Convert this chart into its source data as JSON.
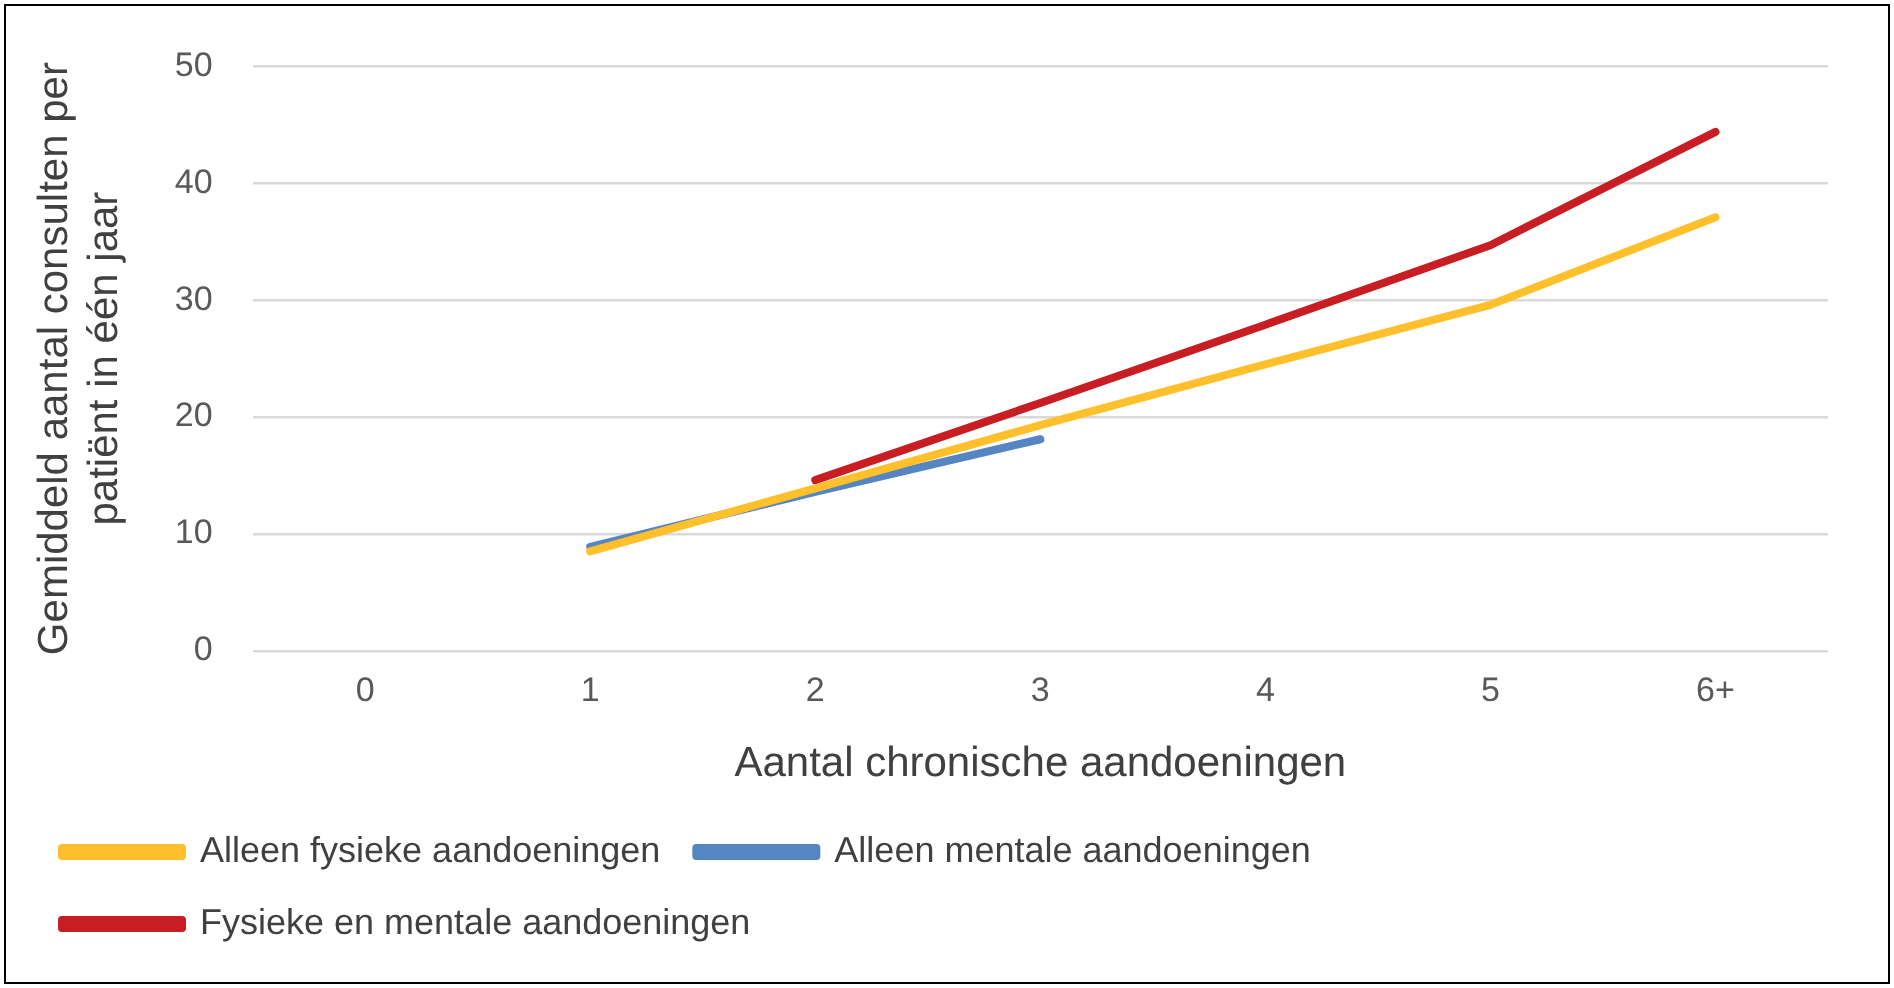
{
  "chart_data": {
    "type": "line",
    "xlabel": "Aantal chronische aandoeningen",
    "ylabel": "Gemiddeld aantal consulten per patiënt in één jaar",
    "categories": [
      "0",
      "1",
      "2",
      "3",
      "4",
      "5",
      "6+"
    ],
    "series": [
      {
        "name": "Alleen fysieke aandoeningen",
        "color": "#ffc02b",
        "values": [
          null,
          8.5,
          13.9,
          19.3,
          24.5,
          29.6,
          37.1
        ]
      },
      {
        "name": "Alleen mentale aandoeningen",
        "color": "#5585c2",
        "values": [
          null,
          8.9,
          13.6,
          18.1,
          null,
          null,
          null
        ]
      },
      {
        "name": "Fysieke en mentale aandoeningen",
        "color": "#c81d22",
        "values": [
          null,
          null,
          14.6,
          21.2,
          27.9,
          34.7,
          44.4
        ]
      }
    ],
    "ylim": [
      0,
      50
    ],
    "yticks": [
      0,
      10,
      20,
      30,
      40,
      50
    ],
    "grid": "y",
    "legend": "bottom",
    "marker": "none",
    "line_style": "solid"
  }
}
